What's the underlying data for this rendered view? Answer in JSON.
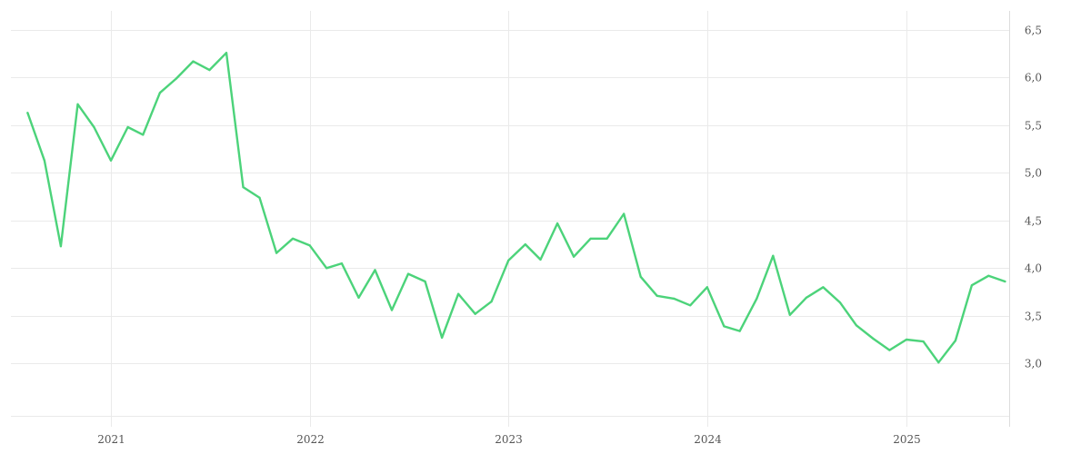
{
  "chart_data": {
    "type": "line",
    "title": "",
    "xlabel": "",
    "ylabel": "",
    "x_ticks": [
      "2021",
      "2022",
      "2023",
      "2024",
      "2025"
    ],
    "y_ticks": [
      "3,0",
      "3,5",
      "4,0",
      "4,5",
      "5,0",
      "5,5",
      "6,0",
      "6,5"
    ],
    "ylim": [
      2.45,
      6.7
    ],
    "y_axis_position": "right",
    "grid": true,
    "legend": "none",
    "line_color": "#4cd37a",
    "series": [
      {
        "x": [
          "2020-08",
          "2020-09",
          "2020-10",
          "2020-11",
          "2020-12",
          "2021-01",
          "2021-02",
          "2021-03",
          "2021-04",
          "2021-05",
          "2021-06",
          "2021-07",
          "2021-08",
          "2021-09",
          "2021-10",
          "2021-11",
          "2021-12",
          "2022-01",
          "2022-02",
          "2022-03",
          "2022-04",
          "2022-05",
          "2022-06",
          "2022-07",
          "2022-08",
          "2022-09",
          "2022-10",
          "2022-11",
          "2022-12",
          "2023-01",
          "2023-02",
          "2023-03",
          "2023-04",
          "2023-05",
          "2023-06",
          "2023-07",
          "2023-08",
          "2023-09",
          "2023-10",
          "2023-11",
          "2023-12",
          "2024-01",
          "2024-02",
          "2024-03",
          "2024-04",
          "2024-05",
          "2024-06",
          "2024-07",
          "2024-08",
          "2024-09",
          "2024-10",
          "2024-11",
          "2024-12",
          "2025-01",
          "2025-02",
          "2025-03",
          "2025-04",
          "2025-05",
          "2025-06",
          "2025-07"
        ],
        "values": [
          5.63,
          5.13,
          4.23,
          5.72,
          5.48,
          5.13,
          5.48,
          5.4,
          5.84,
          5.99,
          6.17,
          6.08,
          6.26,
          4.85,
          4.74,
          4.16,
          4.31,
          4.24,
          4.0,
          4.05,
          3.69,
          3.98,
          3.56,
          3.94,
          3.86,
          3.27,
          3.73,
          3.52,
          3.65,
          4.08,
          4.25,
          4.09,
          4.47,
          4.12,
          4.31,
          4.31,
          4.57,
          3.91,
          3.71,
          3.68,
          3.61,
          3.8,
          3.39,
          3.34,
          3.68,
          4.13,
          3.51,
          3.69,
          3.8,
          3.64,
          3.4,
          3.26,
          3.14,
          3.25,
          3.23,
          3.01,
          3.24,
          3.82,
          3.92,
          3.86
        ]
      }
    ]
  }
}
